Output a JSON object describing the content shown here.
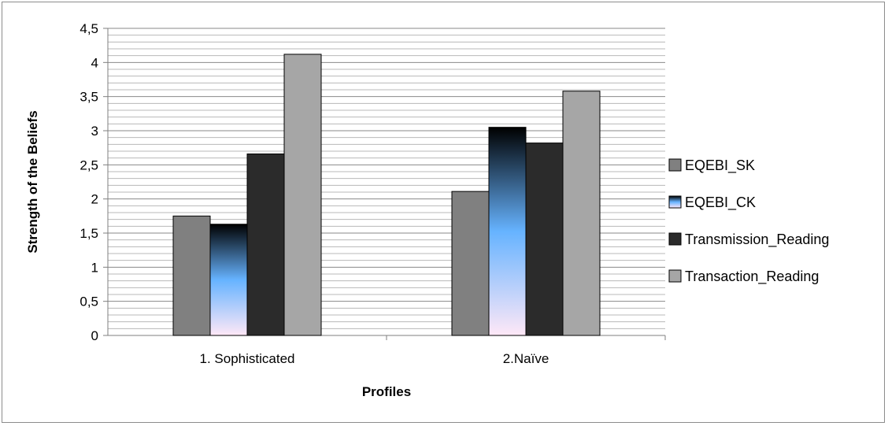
{
  "chart_data": {
    "type": "bar",
    "title": "",
    "xlabel": "Profiles",
    "ylabel": "Strength of the Beliefs",
    "categories": [
      "1. Sophisticated",
      "2.Naïve"
    ],
    "ylim": [
      0,
      4.5
    ],
    "ytick_step": 0.5,
    "ytick_labels": [
      "0",
      "0,5",
      "1",
      "1,5",
      "2",
      "2,5",
      "3",
      "3,5",
      "4",
      "4,5"
    ],
    "minor_grid_step": 0.1,
    "grid": true,
    "legend_position": "right",
    "series": [
      {
        "name": "EQEBI_SK",
        "values": [
          1.75,
          2.11
        ],
        "fill": "solid",
        "color": "#808080"
      },
      {
        "name": "EQEBI_CK",
        "values": [
          1.63,
          3.05
        ],
        "fill": "gradient",
        "colors": [
          "#000000",
          "#66b3ff",
          "#ffe8f7"
        ]
      },
      {
        "name": "Transmission_Reading",
        "values": [
          2.66,
          2.82
        ],
        "fill": "solid",
        "color": "#2b2b2b"
      },
      {
        "name": "Transaction_Reading",
        "values": [
          4.12,
          3.58
        ],
        "fill": "solid",
        "color": "#a6a6a6"
      }
    ]
  }
}
